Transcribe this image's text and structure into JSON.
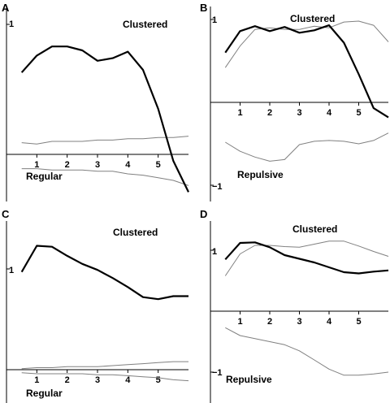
{
  "chart_data": [
    {
      "type": "line",
      "panel": "A",
      "x": [
        0.5,
        1,
        1.5,
        2,
        2.5,
        3,
        3.5,
        4,
        4.5,
        5,
        5.5,
        6
      ],
      "xticks": [
        "1",
        "2",
        "3",
        "4",
        "5"
      ],
      "yticks": [
        {
          "value": 1,
          "label": "1"
        }
      ],
      "ylim": [
        -0.3,
        1.1
      ],
      "xlim": [
        0,
        6
      ],
      "annotations": [
        "Clustered",
        "Regular"
      ],
      "series": [
        {
          "role": "observed",
          "values": [
            0.63,
            0.76,
            0.83,
            0.83,
            0.8,
            0.72,
            0.74,
            0.79,
            0.65,
            0.35,
            -0.05,
            -0.29
          ]
        },
        {
          "role": "upper",
          "values": [
            0.09,
            0.08,
            0.1,
            0.1,
            0.1,
            0.11,
            0.11,
            0.12,
            0.12,
            0.13,
            0.13,
            0.14
          ]
        },
        {
          "role": "lower",
          "values": [
            -0.11,
            -0.11,
            -0.12,
            -0.12,
            -0.12,
            -0.13,
            -0.13,
            -0.15,
            -0.16,
            -0.18,
            -0.2,
            -0.24
          ]
        }
      ]
    },
    {
      "type": "line",
      "panel": "B",
      "x": [
        0.5,
        1,
        1.5,
        2,
        2.5,
        3,
        3.5,
        4,
        4.5,
        5,
        5.5,
        6
      ],
      "xticks": [
        "1",
        "2",
        "3",
        "4",
        "5"
      ],
      "yticks": [
        {
          "value": 1,
          "label": "1"
        },
        {
          "value": -1,
          "label": "−1"
        }
      ],
      "ylim": [
        -1.1,
        1.1
      ],
      "xlim": [
        0,
        6
      ],
      "annotations": [
        "Clustered",
        "Repulsive"
      ],
      "series": [
        {
          "role": "observed",
          "values": [
            0.6,
            0.86,
            0.92,
            0.86,
            0.91,
            0.84,
            0.87,
            0.93,
            0.72,
            0.34,
            -0.07,
            -0.18
          ]
        },
        {
          "role": "upper",
          "values": [
            0.42,
            0.68,
            0.88,
            0.9,
            0.88,
            0.88,
            0.92,
            0.9,
            0.97,
            0.98,
            0.93,
            0.73
          ]
        },
        {
          "role": "lower",
          "values": [
            -0.48,
            -0.59,
            -0.66,
            -0.71,
            -0.69,
            -0.51,
            -0.47,
            -0.46,
            -0.47,
            -0.5,
            -0.46,
            -0.37
          ]
        }
      ]
    },
    {
      "type": "line",
      "panel": "C",
      "x": [
        0.5,
        1,
        1.5,
        2,
        2.5,
        3,
        3.5,
        4,
        4.5,
        5,
        5.5,
        6
      ],
      "xticks": [
        "1",
        "2",
        "3",
        "4",
        "5"
      ],
      "yticks": [
        {
          "value": 1,
          "label": "1"
        }
      ],
      "ylim": [
        -0.2,
        1.4
      ],
      "xlim": [
        0,
        6
      ],
      "annotations": [
        "Clustered",
        "Regular"
      ],
      "series": [
        {
          "role": "observed",
          "values": [
            0.97,
            1.23,
            1.22,
            1.13,
            1.05,
            0.99,
            0.91,
            0.82,
            0.72,
            0.7,
            0.73,
            0.73
          ]
        },
        {
          "role": "upper",
          "values": [
            0.01,
            0.02,
            0.02,
            0.03,
            0.03,
            0.03,
            0.04,
            0.05,
            0.06,
            0.07,
            0.08,
            0.08
          ]
        },
        {
          "role": "lower",
          "values": [
            -0.03,
            -0.04,
            -0.04,
            -0.04,
            -0.04,
            -0.05,
            -0.05,
            -0.06,
            -0.07,
            -0.08,
            -0.1,
            -0.11
          ]
        }
      ]
    },
    {
      "type": "line",
      "panel": "D",
      "x": [
        0.5,
        1,
        1.5,
        2,
        2.5,
        3,
        3.5,
        4,
        4.5,
        5,
        5.5,
        6
      ],
      "xticks": [
        "1",
        "2",
        "3",
        "4",
        "5"
      ],
      "yticks": [
        {
          "value": 1,
          "label": "1"
        },
        {
          "value": -1,
          "label": "−1"
        }
      ],
      "ylim": [
        -1.2,
        1.2
      ],
      "xlim": [
        0,
        6
      ],
      "annotations": [
        "Clustered",
        "Repulsive"
      ],
      "series": [
        {
          "role": "observed",
          "values": [
            0.85,
            1.12,
            1.13,
            1.05,
            0.92,
            0.86,
            0.8,
            0.72,
            0.64,
            0.62,
            0.65,
            0.67
          ]
        },
        {
          "role": "upper",
          "values": [
            0.58,
            0.94,
            1.08,
            1.08,
            1.06,
            1.05,
            1.1,
            1.15,
            1.15,
            1.07,
            0.98,
            0.9
          ]
        },
        {
          "role": "lower",
          "values": [
            -0.27,
            -0.4,
            -0.45,
            -0.5,
            -0.55,
            -0.65,
            -0.8,
            -0.95,
            -1.05,
            -1.05,
            -1.03,
            -1.0
          ]
        }
      ]
    }
  ]
}
